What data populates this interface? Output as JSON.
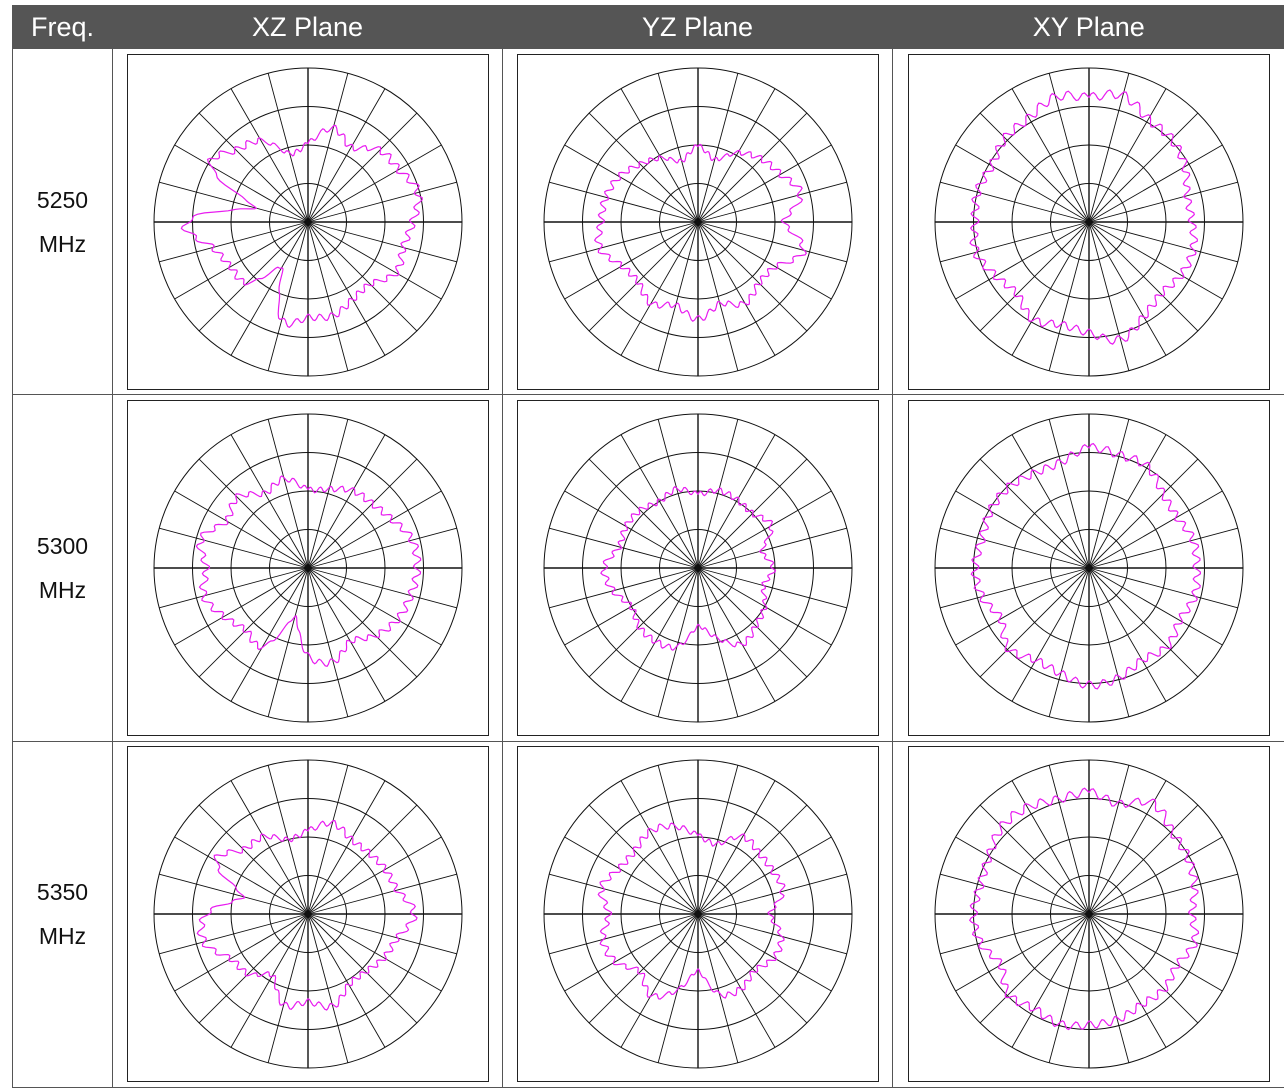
{
  "table": {
    "header": [
      "Freq.",
      "XZ Plane",
      "YZ Plane",
      "XY Plane"
    ],
    "rows": [
      {
        "freq_line1": "5250",
        "freq_line2": "MHz"
      },
      {
        "freq_line1": "5300",
        "freq_line2": "MHz"
      },
      {
        "freq_line1": "5350",
        "freq_line2": "MHz"
      }
    ]
  },
  "colors": {
    "header_bg": "#555555",
    "header_text": "#ffffff",
    "trace": "#e81cf0",
    "grid": "#111111"
  },
  "chart_data": [
    {
      "type": "polar",
      "freq": "5250 MHz",
      "plane": "XZ Plane",
      "radial_unit": "dB",
      "angles_deg": [
        0,
        15,
        30,
        45,
        60,
        75,
        90,
        105,
        120,
        135,
        150,
        165,
        180,
        195,
        210,
        225,
        240,
        255,
        270,
        285,
        300,
        315,
        330,
        345
      ],
      "radius_norm": [
        0.51,
        0.63,
        0.56,
        0.66,
        0.68,
        0.74,
        0.68,
        0.64,
        0.66,
        0.57,
        0.58,
        0.63,
        0.62,
        0.66,
        0.34,
        0.56,
        0.58,
        0.64,
        0.79,
        0.36,
        0.73,
        0.66,
        0.61,
        0.46
      ]
    },
    {
      "type": "polar",
      "freq": "5250 MHz",
      "plane": "YZ Plane",
      "radial_unit": "dB",
      "angles_deg": [
        0,
        15,
        30,
        45,
        60,
        75,
        90,
        105,
        120,
        135,
        150,
        165,
        180,
        195,
        210,
        225,
        240,
        255,
        270,
        285,
        300,
        315,
        330,
        345
      ],
      "radius_norm": [
        0.49,
        0.42,
        0.52,
        0.58,
        0.62,
        0.69,
        0.56,
        0.71,
        0.58,
        0.56,
        0.61,
        0.55,
        0.63,
        0.56,
        0.61,
        0.55,
        0.57,
        0.66,
        0.63,
        0.62,
        0.59,
        0.53,
        0.48,
        0.41
      ]
    },
    {
      "type": "polar",
      "freq": "5250 MHz",
      "plane": "XY Plane",
      "radial_unit": "dB",
      "angles_deg": [
        0,
        15,
        30,
        45,
        60,
        75,
        90,
        105,
        120,
        135,
        150,
        165,
        180,
        195,
        210,
        225,
        240,
        255,
        270,
        285,
        300,
        315,
        330,
        345
      ],
      "radius_norm": [
        0.81,
        0.85,
        0.77,
        0.76,
        0.72,
        0.66,
        0.67,
        0.7,
        0.69,
        0.66,
        0.71,
        0.79,
        0.72,
        0.69,
        0.73,
        0.66,
        0.7,
        0.76,
        0.74,
        0.75,
        0.73,
        0.77,
        0.78,
        0.84
      ]
    },
    {
      "type": "polar",
      "freq": "5300 MHz",
      "plane": "XZ Plane",
      "radial_unit": "dB",
      "angles_deg": [
        0,
        15,
        30,
        45,
        60,
        75,
        90,
        105,
        120,
        135,
        150,
        165,
        180,
        195,
        210,
        225,
        240,
        255,
        270,
        285,
        300,
        315,
        330,
        345
      ],
      "radius_norm": [
        0.51,
        0.53,
        0.58,
        0.59,
        0.63,
        0.7,
        0.71,
        0.69,
        0.67,
        0.62,
        0.55,
        0.63,
        0.57,
        0.33,
        0.59,
        0.57,
        0.63,
        0.7,
        0.66,
        0.72,
        0.61,
        0.65,
        0.56,
        0.6
      ]
    },
    {
      "type": "polar",
      "freq": "5300 MHz",
      "plane": "YZ Plane",
      "radial_unit": "dB",
      "angles_deg": [
        0,
        15,
        30,
        45,
        60,
        75,
        90,
        105,
        120,
        135,
        150,
        165,
        180,
        195,
        210,
        225,
        240,
        255,
        270,
        285,
        300,
        315,
        330,
        345
      ],
      "radius_norm": [
        0.48,
        0.52,
        0.51,
        0.5,
        0.55,
        0.43,
        0.49,
        0.44,
        0.5,
        0.53,
        0.57,
        0.47,
        0.38,
        0.53,
        0.55,
        0.54,
        0.5,
        0.57,
        0.61,
        0.53,
        0.54,
        0.53,
        0.5,
        0.53
      ]
    },
    {
      "type": "polar",
      "freq": "5300 MHz",
      "plane": "XY Plane",
      "radial_unit": "dB",
      "angles_deg": [
        0,
        15,
        30,
        45,
        60,
        75,
        90,
        105,
        120,
        135,
        150,
        165,
        180,
        195,
        210,
        225,
        240,
        255,
        270,
        285,
        300,
        315,
        330,
        345
      ],
      "radius_norm": [
        0.78,
        0.76,
        0.76,
        0.68,
        0.66,
        0.7,
        0.7,
        0.71,
        0.68,
        0.72,
        0.69,
        0.74,
        0.76,
        0.71,
        0.69,
        0.74,
        0.66,
        0.72,
        0.74,
        0.72,
        0.74,
        0.74,
        0.71,
        0.71
      ]
    },
    {
      "type": "polar",
      "freq": "5350 MHz",
      "plane": "XZ Plane",
      "radial_unit": "dB",
      "angles_deg": [
        0,
        15,
        30,
        45,
        60,
        75,
        90,
        105,
        120,
        135,
        150,
        165,
        180,
        195,
        210,
        225,
        240,
        255,
        270,
        285,
        300,
        315,
        330,
        345
      ],
      "radius_norm": [
        0.54,
        0.61,
        0.56,
        0.56,
        0.58,
        0.6,
        0.69,
        0.6,
        0.57,
        0.53,
        0.53,
        0.62,
        0.57,
        0.61,
        0.46,
        0.55,
        0.58,
        0.7,
        0.66,
        0.44,
        0.69,
        0.59,
        0.58,
        0.5
      ]
    },
    {
      "type": "polar",
      "freq": "5350 MHz",
      "plane": "YZ Plane",
      "radial_unit": "dB",
      "angles_deg": [
        0,
        15,
        30,
        45,
        60,
        75,
        90,
        105,
        120,
        135,
        150,
        165,
        180,
        195,
        210,
        225,
        240,
        255,
        270,
        285,
        300,
        315,
        330,
        345
      ],
      "radius_norm": [
        0.51,
        0.47,
        0.58,
        0.56,
        0.56,
        0.57,
        0.47,
        0.56,
        0.57,
        0.52,
        0.56,
        0.54,
        0.37,
        0.51,
        0.61,
        0.53,
        0.62,
        0.64,
        0.58,
        0.65,
        0.59,
        0.58,
        0.62,
        0.59
      ]
    },
    {
      "type": "polar",
      "freq": "5350 MHz",
      "plane": "XY Plane",
      "radial_unit": "dB",
      "angles_deg": [
        0,
        15,
        30,
        45,
        60,
        75,
        90,
        105,
        120,
        135,
        150,
        165,
        180,
        195,
        210,
        225,
        240,
        255,
        270,
        285,
        300,
        315,
        330,
        345
      ],
      "radius_norm": [
        0.79,
        0.74,
        0.83,
        0.76,
        0.74,
        0.71,
        0.67,
        0.71,
        0.66,
        0.69,
        0.68,
        0.71,
        0.72,
        0.74,
        0.71,
        0.74,
        0.66,
        0.73,
        0.75,
        0.73,
        0.75,
        0.8,
        0.8,
        0.77
      ]
    }
  ]
}
